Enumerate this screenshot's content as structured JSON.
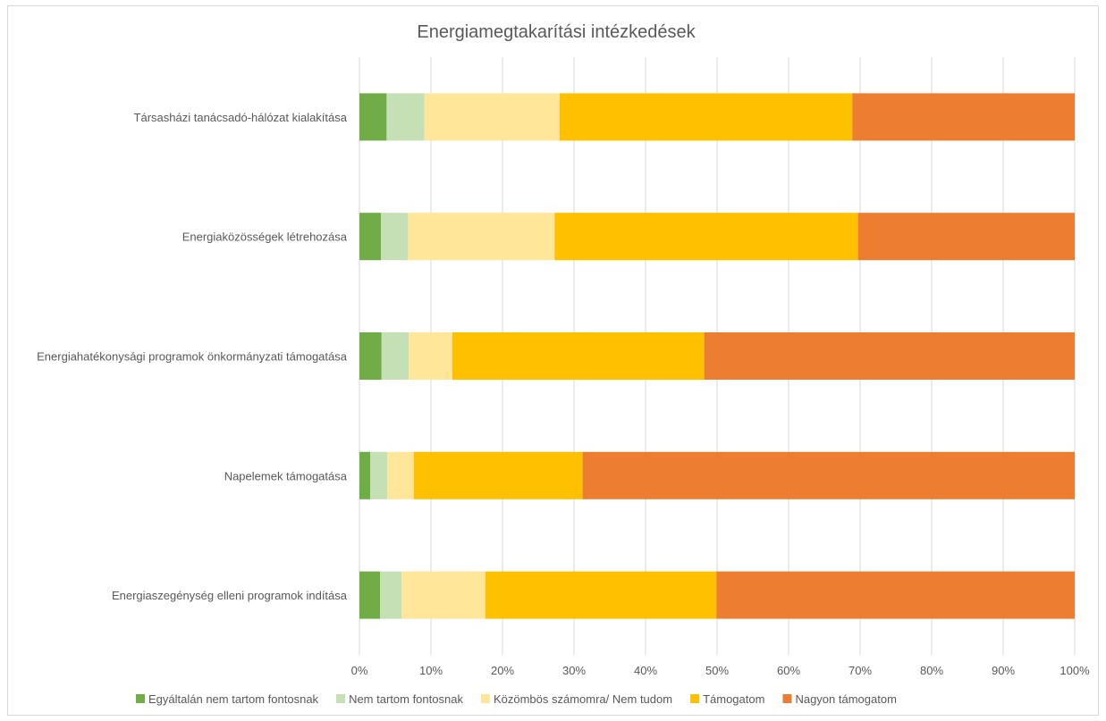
{
  "chart_data": {
    "type": "bar",
    "orientation": "horizontal",
    "stacked": "percent",
    "title": "Energiamegtakarítási intézkedések",
    "categories": [
      "Társasházi tanácsadó-hálózat kialakítása",
      "Energiaközösségek létrehozása",
      "Energiahatékonysági programok önkormányzati támogatása",
      "Napelemek támogatása",
      "Energiaszegénység elleni programok indítása"
    ],
    "series": [
      {
        "name": "Egyáltalán nem tartom fontosnak",
        "color": "#70ad47",
        "values": [
          3.8,
          3.0,
          3.1,
          1.5,
          2.9
        ]
      },
      {
        "name": "Nem tartom fontosnak",
        "color": "#c5e0b4",
        "values": [
          5.3,
          3.8,
          3.8,
          2.4,
          3.0
        ]
      },
      {
        "name": "Közömbös számomra/ Nem tudom",
        "color": "#ffe699",
        "values": [
          18.9,
          20.5,
          6.1,
          3.7,
          11.7
        ]
      },
      {
        "name": "Támogatom",
        "color": "#ffc000",
        "values": [
          40.9,
          42.4,
          35.2,
          23.6,
          32.3
        ]
      },
      {
        "name": "Nagyon támogatom",
        "color": "#ed7d31",
        "values": [
          31.1,
          30.3,
          51.8,
          68.8,
          50.1
        ]
      }
    ],
    "xlim": [
      0,
      100
    ],
    "x_ticks": [
      "0%",
      "10%",
      "20%",
      "30%",
      "40%",
      "50%",
      "60%",
      "70%",
      "80%",
      "90%",
      "100%"
    ],
    "grid": true,
    "legend_position": "bottom"
  }
}
